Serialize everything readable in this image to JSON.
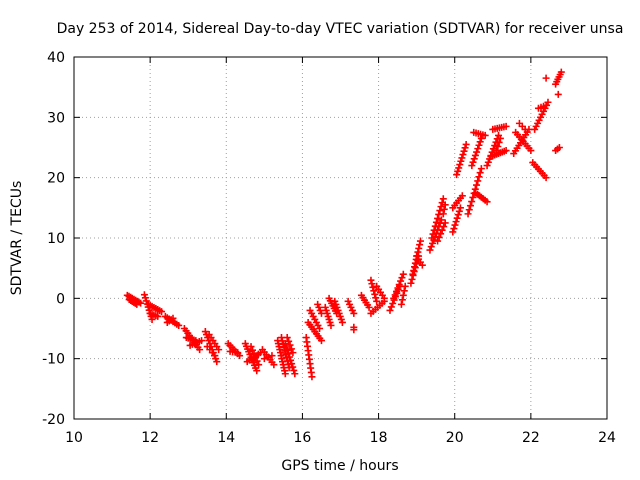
{
  "chart_data": {
    "type": "scatter",
    "title": "Day 253 of 2014, Sidereal Day-to-day VTEC variation (SDTVAR) for receiver unsa",
    "xlabel": "GPS time / hours",
    "ylabel": "SDTVAR / TECUs",
    "xlim": [
      10,
      24
    ],
    "ylim": [
      -20,
      40
    ],
    "xticks": [
      10,
      12,
      14,
      16,
      18,
      20,
      22,
      24
    ],
    "yticks": [
      -20,
      -10,
      0,
      10,
      20,
      30,
      40
    ],
    "x_tick_labels": [
      "10",
      "12",
      "14",
      "16",
      "18",
      "20",
      "22",
      "24"
    ],
    "y_tick_labels": [
      "-20",
      "-10",
      "0",
      "10",
      "20",
      "30",
      "40"
    ],
    "grid": true,
    "marker": "plus",
    "color": "#ff0000",
    "series": [
      {
        "name": "SDTVAR",
        "segments": [
          {
            "x0": 11.4,
            "y0": 0.5,
            "x1": 11.75,
            "y1": -0.8,
            "n": 9
          },
          {
            "x0": 11.45,
            "y0": -0.2,
            "x1": 11.65,
            "y1": -1.0,
            "n": 6
          },
          {
            "x0": 11.85,
            "y0": 0.6,
            "x1": 12.05,
            "y1": -3.5,
            "n": 9
          },
          {
            "x0": 11.95,
            "y0": -1.0,
            "x1": 12.3,
            "y1": -2.2,
            "n": 8
          },
          {
            "x0": 12.0,
            "y0": -2.5,
            "x1": 12.2,
            "y1": -3.0,
            "n": 5
          },
          {
            "x0": 12.4,
            "y0": -3.0,
            "x1": 12.75,
            "y1": -4.5,
            "n": 8
          },
          {
            "x0": 12.45,
            "y0": -4.0,
            "x1": 12.6,
            "y1": -3.3,
            "n": 4
          },
          {
            "x0": 12.9,
            "y0": -5.0,
            "x1": 13.3,
            "y1": -8.5,
            "n": 10
          },
          {
            "x0": 12.95,
            "y0": -6.5,
            "x1": 13.2,
            "y1": -7.0,
            "n": 6
          },
          {
            "x0": 13.05,
            "y0": -7.8,
            "x1": 13.35,
            "y1": -7.0,
            "n": 6
          },
          {
            "x0": 13.45,
            "y0": -5.5,
            "x1": 13.75,
            "y1": -10.5,
            "n": 11
          },
          {
            "x0": 13.55,
            "y0": -6.0,
            "x1": 13.8,
            "y1": -8.5,
            "n": 6
          },
          {
            "x0": 13.5,
            "y0": -8.0,
            "x1": 13.7,
            "y1": -9.5,
            "n": 4
          },
          {
            "x0": 14.05,
            "y0": -7.5,
            "x1": 14.35,
            "y1": -9.5,
            "n": 7
          },
          {
            "x0": 14.1,
            "y0": -8.8,
            "x1": 14.3,
            "y1": -9.0,
            "n": 4
          },
          {
            "x0": 14.5,
            "y0": -7.5,
            "x1": 14.8,
            "y1": -12.0,
            "n": 11
          },
          {
            "x0": 14.55,
            "y0": -10.5,
            "x1": 14.9,
            "y1": -9.0,
            "n": 7
          },
          {
            "x0": 14.65,
            "y0": -8.0,
            "x1": 14.85,
            "y1": -11.0,
            "n": 6
          },
          {
            "x0": 14.95,
            "y0": -8.5,
            "x1": 15.25,
            "y1": -11.0,
            "n": 7
          },
          {
            "x0": 15.0,
            "y0": -10.0,
            "x1": 15.2,
            "y1": -9.5,
            "n": 3
          },
          {
            "x0": 15.35,
            "y0": -7.0,
            "x1": 15.55,
            "y1": -12.5,
            "n": 12
          },
          {
            "x0": 15.45,
            "y0": -6.5,
            "x1": 15.65,
            "y1": -11.5,
            "n": 10
          },
          {
            "x0": 15.55,
            "y0": -7.5,
            "x1": 15.8,
            "y1": -12.5,
            "n": 10
          },
          {
            "x0": 15.6,
            "y0": -6.5,
            "x1": 15.75,
            "y1": -9.0,
            "n": 5
          },
          {
            "x0": 16.1,
            "y0": -6.5,
            "x1": 16.25,
            "y1": -13.0,
            "n": 10
          },
          {
            "x0": 16.15,
            "y0": -4.0,
            "x1": 16.5,
            "y1": -7.0,
            "n": 9
          },
          {
            "x0": 16.2,
            "y0": -2.0,
            "x1": 16.45,
            "y1": -5.0,
            "n": 7
          },
          {
            "x0": 16.4,
            "y0": -1.0,
            "x1": 16.5,
            "y1": -2.5,
            "n": 4
          },
          {
            "x0": 16.6,
            "y0": -1.5,
            "x1": 16.75,
            "y1": -4.5,
            "n": 7
          },
          {
            "x0": 16.7,
            "y0": 0.0,
            "x1": 16.9,
            "y1": -2.5,
            "n": 7
          },
          {
            "x0": 16.85,
            "y0": -0.5,
            "x1": 17.05,
            "y1": -4.0,
            "n": 8
          },
          {
            "x0": 17.2,
            "y0": -0.5,
            "x1": 17.35,
            "y1": -2.5,
            "n": 5
          },
          {
            "x0": 17.35,
            "y0": -4.8,
            "x1": 17.35,
            "y1": -5.2,
            "n": 2
          },
          {
            "x0": 17.55,
            "y0": 0.5,
            "x1": 17.75,
            "y1": -1.5,
            "n": 6
          },
          {
            "x0": 17.8,
            "y0": 3.0,
            "x1": 17.95,
            "y1": -0.5,
            "n": 7
          },
          {
            "x0": 17.8,
            "y0": -2.5,
            "x1": 18.15,
            "y1": -0.5,
            "n": 7
          },
          {
            "x0": 17.95,
            "y0": 2.0,
            "x1": 18.15,
            "y1": 0.0,
            "n": 5
          },
          {
            "x0": 18.3,
            "y0": -2.0,
            "x1": 18.55,
            "y1": 2.0,
            "n": 8
          },
          {
            "x0": 18.4,
            "y0": 0.0,
            "x1": 18.65,
            "y1": 4.0,
            "n": 8
          },
          {
            "x0": 18.6,
            "y0": -1.0,
            "x1": 18.7,
            "y1": 2.0,
            "n": 5
          },
          {
            "x0": 18.85,
            "y0": 2.5,
            "x1": 19.05,
            "y1": 7.0,
            "n": 8
          },
          {
            "x0": 18.9,
            "y0": 4.0,
            "x1": 19.1,
            "y1": 9.5,
            "n": 10
          },
          {
            "x0": 19.0,
            "y0": 7.0,
            "x1": 19.15,
            "y1": 5.5,
            "n": 4
          },
          {
            "x0": 19.35,
            "y0": 8.0,
            "x1": 19.65,
            "y1": 13.0,
            "n": 10
          },
          {
            "x0": 19.4,
            "y0": 10.0,
            "x1": 19.7,
            "y1": 16.5,
            "n": 11
          },
          {
            "x0": 19.55,
            "y0": 9.5,
            "x1": 19.75,
            "y1": 12.5,
            "n": 6
          },
          {
            "x0": 19.7,
            "y0": 14.0,
            "x1": 19.75,
            "y1": 15.5,
            "n": 3
          },
          {
            "x0": 19.95,
            "y0": 11.0,
            "x1": 20.15,
            "y1": 15.0,
            "n": 8
          },
          {
            "x0": 19.95,
            "y0": 15.0,
            "x1": 20.2,
            "y1": 17.0,
            "n": 6
          },
          {
            "x0": 20.05,
            "y0": 20.5,
            "x1": 20.3,
            "y1": 25.5,
            "n": 10
          },
          {
            "x0": 20.35,
            "y0": 14.0,
            "x1": 20.7,
            "y1": 21.5,
            "n": 12
          },
          {
            "x0": 20.45,
            "y0": 22.0,
            "x1": 20.7,
            "y1": 26.5,
            "n": 9
          },
          {
            "x0": 20.5,
            "y0": 27.5,
            "x1": 20.8,
            "y1": 27.0,
            "n": 6
          },
          {
            "x0": 20.55,
            "y0": 17.5,
            "x1": 20.85,
            "y1": 16.0,
            "n": 7
          },
          {
            "x0": 20.85,
            "y0": 22.0,
            "x1": 21.15,
            "y1": 27.0,
            "n": 10
          },
          {
            "x0": 20.95,
            "y0": 23.5,
            "x1": 21.35,
            "y1": 24.5,
            "n": 9
          },
          {
            "x0": 21.0,
            "y0": 28.0,
            "x1": 21.35,
            "y1": 28.5,
            "n": 7
          },
          {
            "x0": 21.1,
            "y0": 24.5,
            "x1": 21.2,
            "y1": 26.5,
            "n": 4
          },
          {
            "x0": 21.55,
            "y0": 24.0,
            "x1": 21.95,
            "y1": 28.0,
            "n": 10
          },
          {
            "x0": 21.6,
            "y0": 27.5,
            "x1": 22.0,
            "y1": 24.5,
            "n": 9
          },
          {
            "x0": 21.7,
            "y0": 29.0,
            "x1": 21.85,
            "y1": 28.0,
            "n": 3
          },
          {
            "x0": 22.05,
            "y0": 22.5,
            "x1": 22.4,
            "y1": 20.0,
            "n": 8
          },
          {
            "x0": 22.1,
            "y0": 28.0,
            "x1": 22.45,
            "y1": 32.5,
            "n": 10
          },
          {
            "x0": 22.2,
            "y0": 31.5,
            "x1": 22.4,
            "y1": 32.0,
            "n": 4
          },
          {
            "x0": 22.4,
            "y0": 36.5,
            "x1": 22.4,
            "y1": 36.5,
            "n": 1
          },
          {
            "x0": 22.65,
            "y0": 35.5,
            "x1": 22.8,
            "y1": 37.5,
            "n": 6
          },
          {
            "x0": 22.72,
            "y0": 33.8,
            "x1": 22.72,
            "y1": 33.8,
            "n": 1
          },
          {
            "x0": 22.65,
            "y0": 24.5,
            "x1": 22.75,
            "y1": 25.0,
            "n": 3
          }
        ]
      }
    ]
  }
}
